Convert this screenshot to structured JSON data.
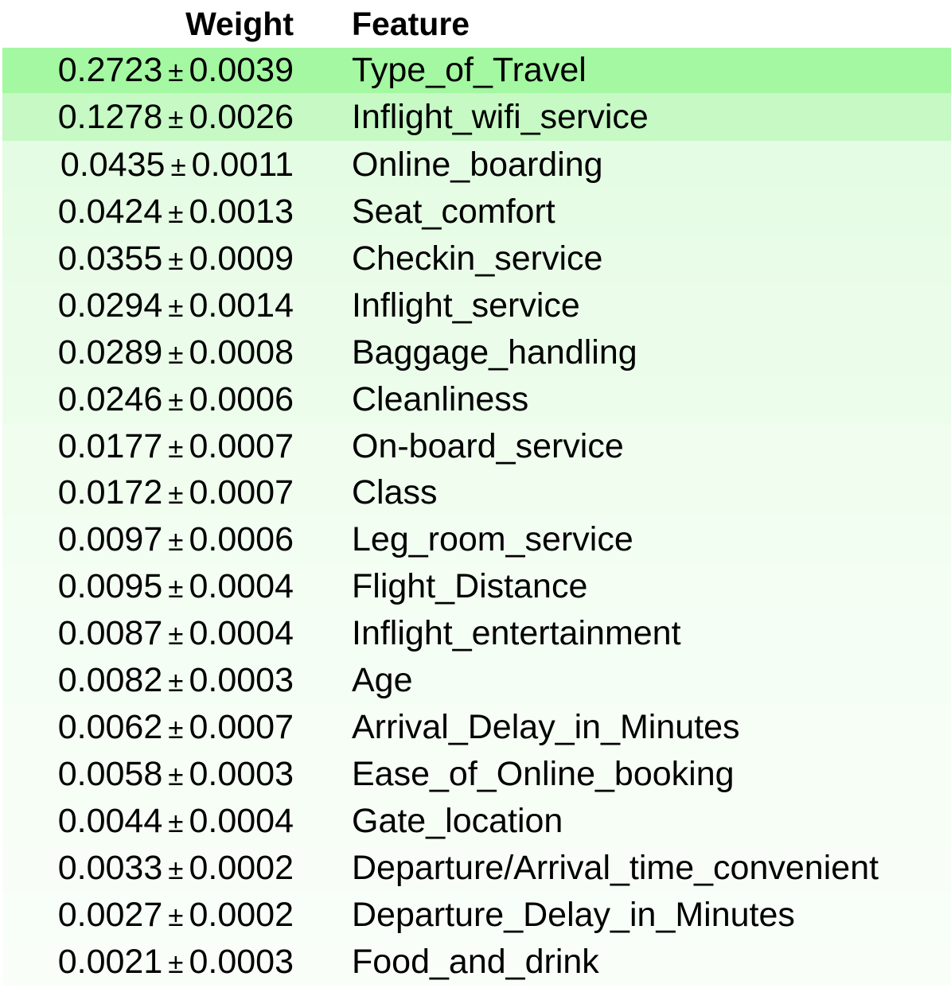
{
  "headers": {
    "weight": "Weight",
    "feature": "Feature"
  },
  "pm_symbol": "±",
  "rows": [
    {
      "weight": "0.2723",
      "std": "0.0039",
      "feature": "Type_of_Travel",
      "bg": "#a3f8a1"
    },
    {
      "weight": "0.1278",
      "std": "0.0026",
      "feature": "Inflight_wifi_service",
      "bg": "#c6f9c4"
    },
    {
      "weight": "0.0435",
      "std": "0.0011",
      "feature": "Online_boarding",
      "bg": "#e5fce4"
    },
    {
      "weight": "0.0424",
      "std": "0.0013",
      "feature": "Seat_comfort",
      "bg": "#e6fce5"
    },
    {
      "weight": "0.0355",
      "std": "0.0009",
      "feature": "Checkin_service",
      "bg": "#e9fce8"
    },
    {
      "weight": "0.0294",
      "std": "0.0014",
      "feature": "Inflight_service",
      "bg": "#ebfdea"
    },
    {
      "weight": "0.0289",
      "std": "0.0008",
      "feature": "Baggage_handling",
      "bg": "#ebfdea"
    },
    {
      "weight": "0.0246",
      "std": "0.0006",
      "feature": "Cleanliness",
      "bg": "#edfdec"
    },
    {
      "weight": "0.0177",
      "std": "0.0007",
      "feature": "On-board_service",
      "bg": "#f0fdef"
    },
    {
      "weight": "0.0172",
      "std": "0.0007",
      "feature": "Class",
      "bg": "#f0fdef"
    },
    {
      "weight": "0.0097",
      "std": "0.0006",
      "feature": "Leg_room_service",
      "bg": "#f3fef3"
    },
    {
      "weight": "0.0095",
      "std": "0.0004",
      "feature": "Flight_Distance",
      "bg": "#f4fef3"
    },
    {
      "weight": "0.0087",
      "std": "0.0004",
      "feature": "Inflight_entertainment",
      "bg": "#f4fef4"
    },
    {
      "weight": "0.0082",
      "std": "0.0003",
      "feature": "Age",
      "bg": "#f4fef4"
    },
    {
      "weight": "0.0062",
      "std": "0.0007",
      "feature": "Arrival_Delay_in_Minutes",
      "bg": "#f6fef5"
    },
    {
      "weight": "0.0058",
      "std": "0.0003",
      "feature": "Ease_of_Online_booking",
      "bg": "#f6fef5"
    },
    {
      "weight": "0.0044",
      "std": "0.0004",
      "feature": "Gate_location",
      "bg": "#f7fef6"
    },
    {
      "weight": "0.0033",
      "std": "0.0002",
      "feature": "Departure/Arrival_time_convenient",
      "bg": "#f8fef7"
    },
    {
      "weight": "0.0027",
      "std": "0.0002",
      "feature": "Departure_Delay_in_Minutes",
      "bg": "#f8fef8"
    },
    {
      "weight": "0.0021",
      "std": "0.0003",
      "feature": "Food_and_drink",
      "bg": "#f9fef9"
    }
  ]
}
